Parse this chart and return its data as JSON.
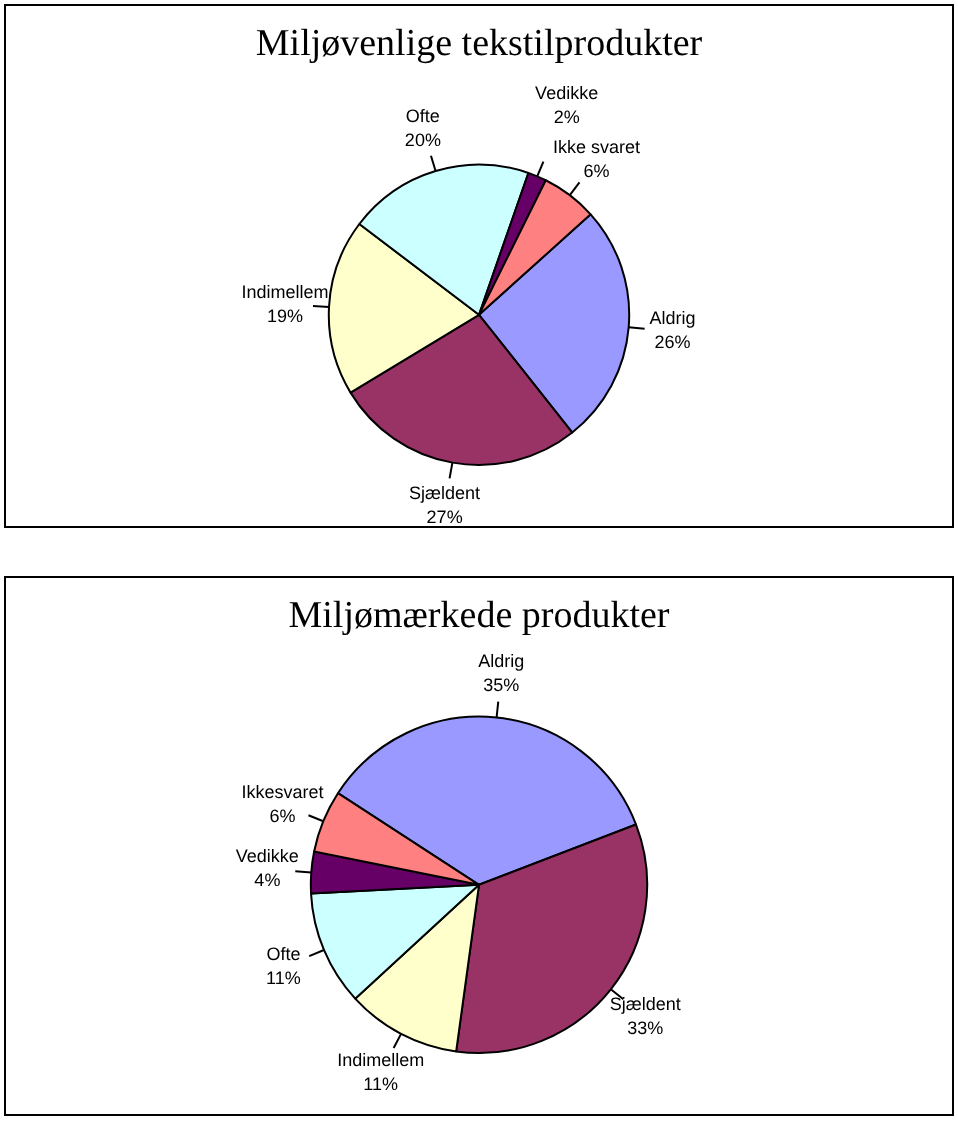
{
  "chart_data": [
    {
      "type": "pie",
      "title": "Miljøvenlige tekstilprodukter",
      "categories": [
        "Aldrig",
        "Sjældent",
        "Indimellem",
        "Ofte",
        "Vedikke",
        "Ikke svaret"
      ],
      "values": [
        26,
        27,
        19,
        20,
        2,
        6
      ],
      "value_labels": [
        "26%",
        "27%",
        "19%",
        "20%",
        "2%",
        "6%"
      ],
      "colors": [
        "#9999ff",
        "#993366",
        "#ffffcc",
        "#ccffff",
        "#660066",
        "#ff8080"
      ],
      "legend": false
    },
    {
      "type": "pie",
      "title": "Miljømærkede produkter",
      "categories": [
        "Aldrig",
        "Sjældent",
        "Indimellem",
        "Ofte",
        "Vedikke",
        "Ikkesvaret"
      ],
      "values": [
        35,
        33,
        11,
        11,
        4,
        6
      ],
      "value_labels": [
        "35%",
        "33%",
        "11%",
        "11%",
        "4%",
        "6%"
      ],
      "colors": [
        "#9999ff",
        "#993366",
        "#ffffcc",
        "#ccffff",
        "#660066",
        "#ff8080"
      ],
      "legend": false
    }
  ]
}
